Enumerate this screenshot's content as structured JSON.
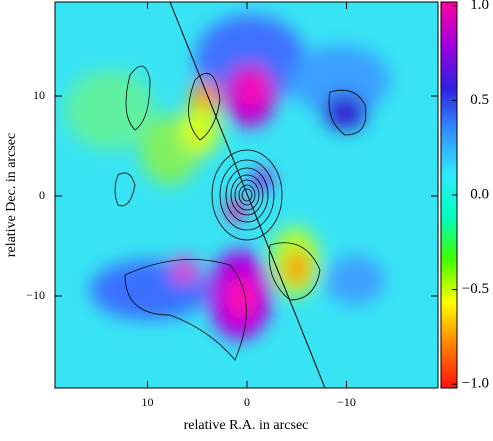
{
  "chart_data": {
    "type": "image-map",
    "xlabel": "relative R.A. in arcsec",
    "ylabel": "relative Dec. in arcsec",
    "xlim": [
      19.3,
      -19.2
    ],
    "xticks": [
      10,
      0,
      {
        "value": -10,
        "label": "−10"
      }
    ],
    "ylim": [
      -19.2,
      19.4
    ],
    "yticks": [
      {
        "value": -10,
        "label": "−10"
      },
      0,
      10
    ],
    "colorbar": {
      "lim": [
        -1.02,
        1.02
      ],
      "ticks": [
        {
          "value": 1.0,
          "label": "1.0"
        },
        {
          "value": 0.5,
          "label": "0.5"
        },
        {
          "value": 0.0,
          "label": "0.0"
        },
        {
          "value": -0.5,
          "label": "−0.5"
        },
        {
          "value": -1.0,
          "label": "−1.0"
        }
      ],
      "colors": [
        "#ff1010",
        "#ff8000",
        "#ffff00",
        "#40ff00",
        "#00ffc0",
        "#30e8ff",
        "#3090ff",
        "#3020e0",
        "#a000e0",
        "#ff00a0"
      ]
    }
  }
}
